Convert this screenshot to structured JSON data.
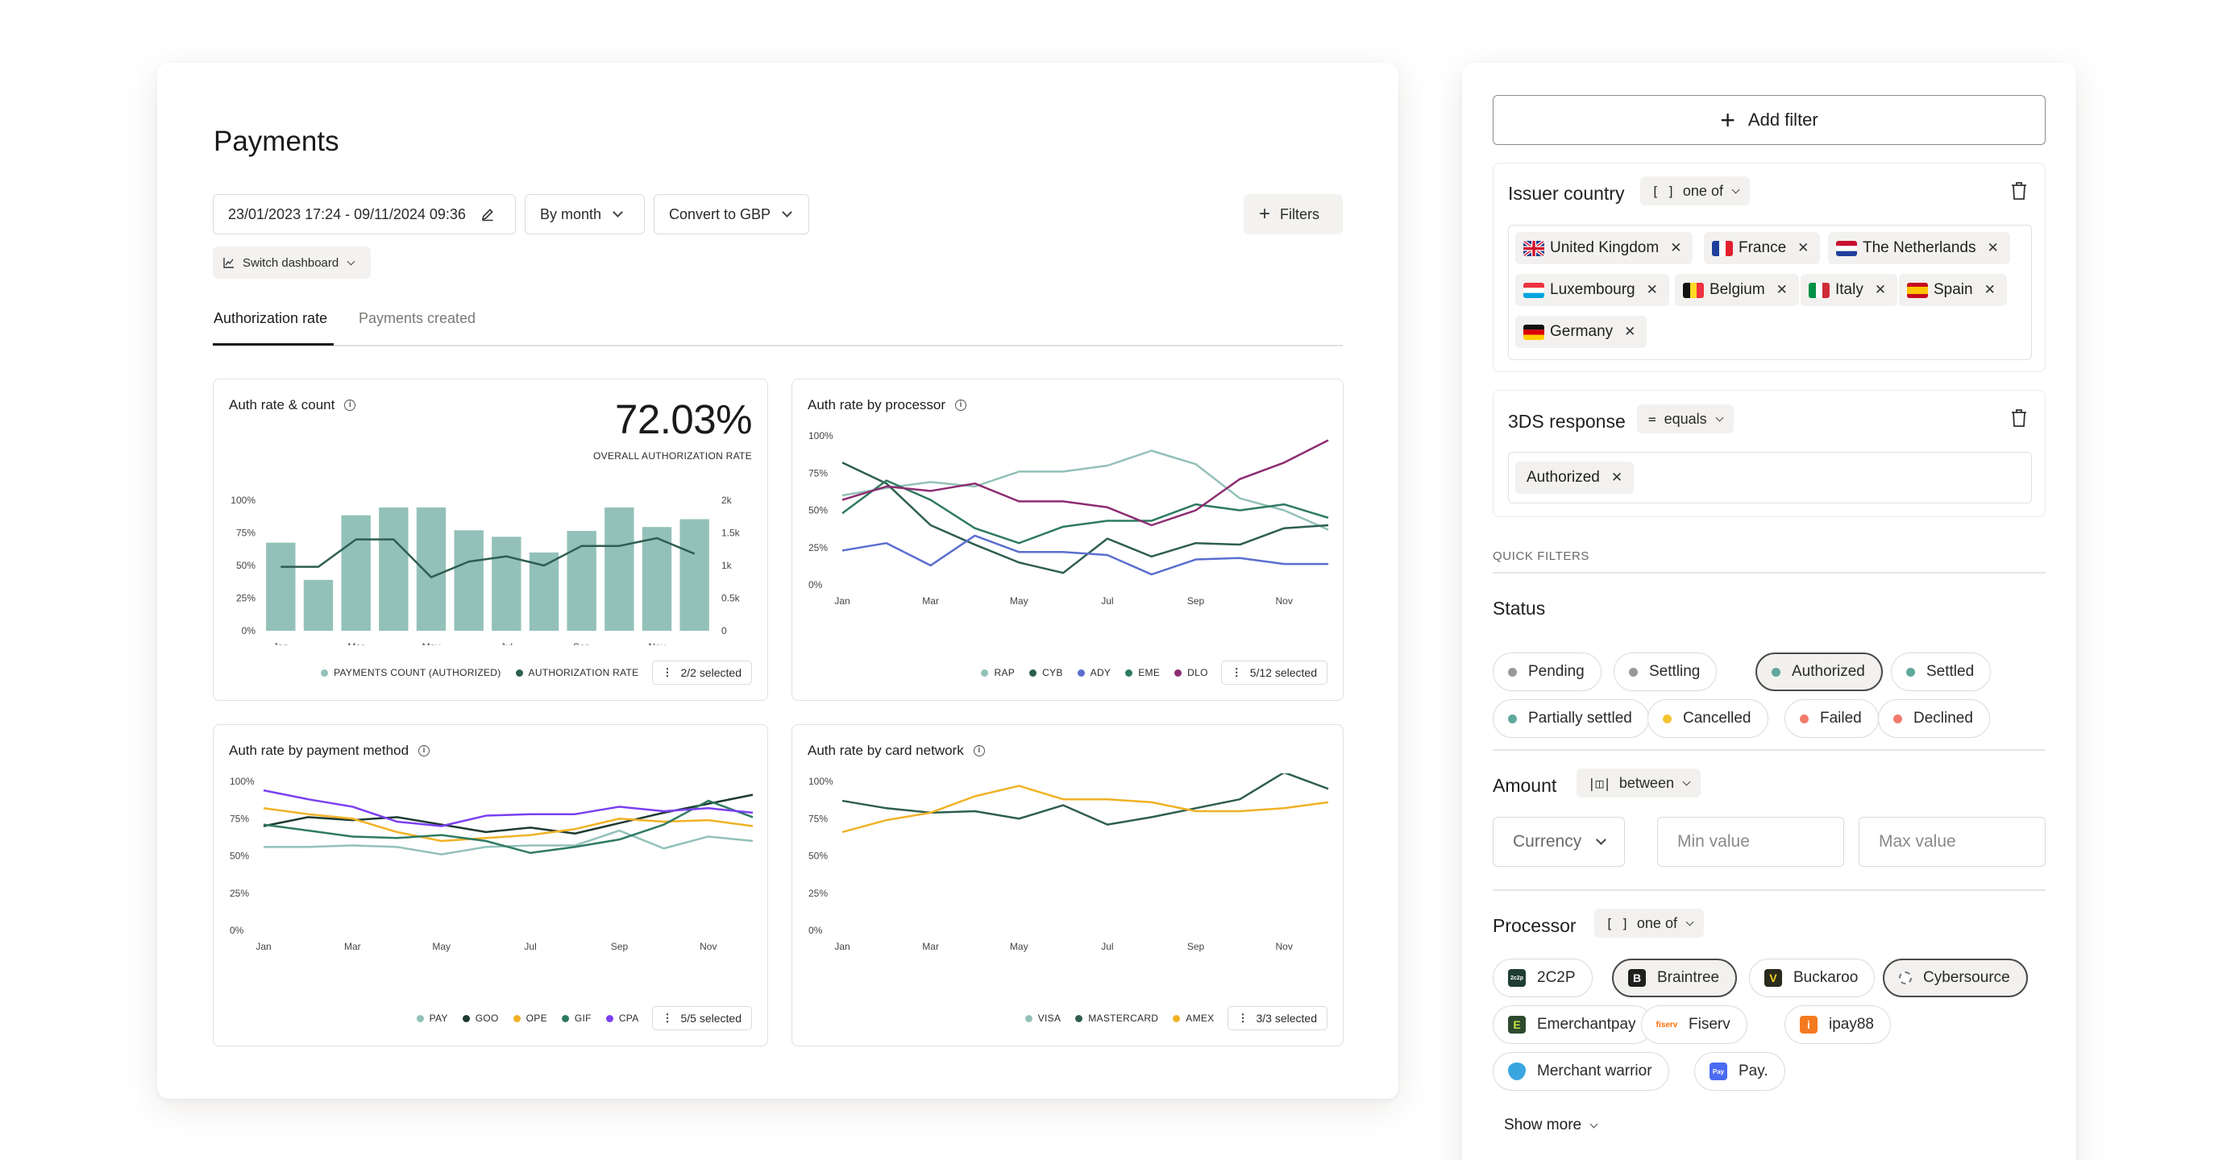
{
  "dashboard": {
    "title": "Payments",
    "date_range": "23/01/2023 17:24 - 09/11/2024 09:36",
    "group_by": "By month",
    "currency": "Convert to GBP",
    "filters_label": "Filters",
    "switch_label": "Switch dashboard",
    "tabs": [
      {
        "label": "Authorization rate",
        "active": true
      },
      {
        "label": "Payments created",
        "active": false
      }
    ]
  },
  "cards": {
    "auth_count": {
      "title": "Auth rate & count",
      "big_value": "72.03%",
      "big_caption": "OVERALL AUTHORIZATION RATE",
      "legend": [
        "PAYMENTS COUNT (AUTHORIZED)",
        "AUTHORIZATION RATE"
      ],
      "selected": "2/2 selected"
    },
    "processor": {
      "title": "Auth rate by processor",
      "legend": [
        "RAP",
        "CYB",
        "ADY",
        "EME",
        "DLO"
      ],
      "selected": "5/12 selected"
    },
    "method": {
      "title": "Auth rate by payment method",
      "legend": [
        "PAY",
        "GOO",
        "OPE",
        "GIF",
        "CPA"
      ],
      "selected": "5/5 selected"
    },
    "network": {
      "title": "Auth rate by card network",
      "legend": [
        "VISA",
        "MASTERCARD",
        "AMEX"
      ],
      "selected": "3/3 selected"
    }
  },
  "chart_data": [
    {
      "type": "bar",
      "title": "Auth rate & count",
      "x_ticks": [
        "Jan",
        "Mar",
        "May",
        "Jul",
        "Sep",
        "Nov"
      ],
      "y_ticks_left": [
        "100%",
        "75%",
        "50%",
        "25%",
        "0%"
      ],
      "y_ticks_right": [
        "2k",
        "1.5k",
        "1k",
        "0.5k",
        "0"
      ],
      "ylim_left": [
        0,
        100
      ],
      "ylim_right": [
        0,
        2000
      ],
      "series": [
        {
          "name": "PAYMENTS COUNT (AUTHORIZED)",
          "axis": "right",
          "color": "#93c1b9",
          "values": [
            1350,
            780,
            1770,
            1890,
            1890,
            1540,
            1440,
            1200,
            1530,
            1890,
            1590,
            1710
          ]
        },
        {
          "name": "AUTHORIZATION RATE",
          "axis": "left",
          "color": "#2e5e50",
          "values": [
            49,
            49,
            70,
            70,
            41,
            53,
            57,
            50,
            65,
            65,
            71,
            59
          ]
        }
      ]
    },
    {
      "type": "line",
      "title": "Auth rate by processor",
      "x_ticks": [
        "Jan",
        "Mar",
        "May",
        "Jul",
        "Sep",
        "Nov"
      ],
      "y_ticks": [
        "100%",
        "75%",
        "50%",
        "25%",
        "0%"
      ],
      "ylim": [
        0,
        100
      ],
      "series": [
        {
          "name": "RAP",
          "color": "#93c1b9",
          "values": [
            60,
            65,
            69,
            66,
            76,
            76,
            80,
            90,
            81,
            58,
            50,
            37
          ]
        },
        {
          "name": "CYB",
          "color": "#2e5e50",
          "values": [
            82,
            68,
            40,
            27,
            15,
            8,
            31,
            19,
            28,
            27,
            38,
            40
          ]
        },
        {
          "name": "ADY",
          "color": "#5a6fd0",
          "values": [
            23,
            28,
            13,
            33,
            22,
            22,
            20,
            7,
            17,
            18,
            14,
            14
          ]
        },
        {
          "name": "EME",
          "color": "#2f7a62",
          "values": [
            48,
            70,
            57,
            38,
            28,
            39,
            43,
            43,
            54,
            50,
            54,
            45
          ]
        },
        {
          "name": "DLO",
          "color": "#8d2c72",
          "values": [
            57,
            66,
            63,
            68,
            56,
            56,
            52,
            40,
            50,
            71,
            82,
            97
          ]
        }
      ]
    },
    {
      "type": "line",
      "title": "Auth rate by payment method",
      "x_ticks": [
        "Jan",
        "Mar",
        "May",
        "Jul",
        "Sep",
        "Nov"
      ],
      "y_ticks": [
        "100%",
        "75%",
        "50%",
        "25%",
        "0%"
      ],
      "ylim": [
        0,
        100
      ],
      "series": [
        {
          "name": "PAY",
          "color": "#93c1b9",
          "values": [
            56,
            56,
            57,
            56,
            51,
            56,
            57,
            57,
            67,
            55,
            63,
            60
          ]
        },
        {
          "name": "GOO",
          "color": "#1e3a32",
          "values": [
            70,
            76,
            74,
            76,
            71,
            66,
            69,
            65,
            72,
            79,
            85,
            91
          ]
        },
        {
          "name": "OPE",
          "color": "#f0b225",
          "values": [
            82,
            78,
            75,
            66,
            60,
            62,
            64,
            68,
            75,
            73,
            74,
            70
          ]
        },
        {
          "name": "GIF",
          "color": "#2f7a62",
          "values": [
            71,
            67,
            63,
            62,
            64,
            60,
            52,
            56,
            61,
            71,
            87,
            76
          ]
        },
        {
          "name": "CPA",
          "color": "#7b3ff2",
          "values": [
            94,
            88,
            83,
            73,
            70,
            77,
            78,
            78,
            83,
            80,
            82,
            79
          ]
        }
      ]
    },
    {
      "type": "line",
      "title": "Auth rate by card network",
      "x_ticks": [
        "Jan",
        "Mar",
        "May",
        "Jul",
        "Sep",
        "Nov"
      ],
      "y_ticks": [
        "100%",
        "75%",
        "50%",
        "25%",
        "0%"
      ],
      "ylim": [
        0,
        100
      ],
      "series": [
        {
          "name": "VISA",
          "color": "#93c1b9",
          "values": []
        },
        {
          "name": "MASTERCARD",
          "color": "#2e5e50",
          "values": [
            87,
            82,
            79,
            80,
            75,
            84,
            71,
            76,
            82,
            88,
            106,
            95
          ]
        },
        {
          "name": "AMEX",
          "color": "#f0b225",
          "values": [
            66,
            74,
            79,
            90,
            97,
            88,
            88,
            86,
            80,
            80,
            82,
            86
          ]
        }
      ]
    }
  ],
  "filters": {
    "add_filter": "Add filter",
    "issuer": {
      "label": "Issuer country",
      "operator_glyph": "[ ]",
      "operator": "one of",
      "tags": [
        "United Kingdom",
        "France",
        "The Netherlands",
        "Luxembourg",
        "Belgium",
        "Italy",
        "Spain",
        "Germany"
      ]
    },
    "threeds": {
      "label": "3DS response",
      "operator_glyph": "=",
      "operator": "equals",
      "tags": [
        "Authorized"
      ]
    },
    "quick_filters_label": "QUICK FILTERS",
    "status": {
      "label": "Status",
      "items": [
        {
          "label": "Pending",
          "color": "#9a9996"
        },
        {
          "label": "Settling",
          "color": "#9a9996"
        },
        {
          "label": "Authorized",
          "color": "#5fa89b",
          "active": true
        },
        {
          "label": "Settled",
          "color": "#5fa89b"
        },
        {
          "label": "Partially settled",
          "color": "#5fa89b"
        },
        {
          "label": "Cancelled",
          "color": "#f4c430"
        },
        {
          "label": "Failed",
          "color": "#f27a6a"
        },
        {
          "label": "Declined",
          "color": "#f27a6a"
        }
      ]
    },
    "amount": {
      "label": "Amount",
      "operator_glyph": "|◫|",
      "operator": "between",
      "currency": "Currency",
      "min": "Min value",
      "max": "Max value"
    },
    "processor": {
      "label": "Processor",
      "operator_glyph": "[ ]",
      "operator": "one of",
      "items": [
        {
          "label": "2C2P",
          "logo": "2c2p",
          "color": "#1f3d35"
        },
        {
          "label": "Braintree",
          "logo": "B",
          "color": "#1f1f1d",
          "active": true
        },
        {
          "label": "Buckaroo",
          "logo": "V",
          "color": "#2a2a1d"
        },
        {
          "label": "Cybersource",
          "logo": "C",
          "color": "#ffffff",
          "active": true
        },
        {
          "label": "Emerchantpay",
          "logo": "E",
          "color": "#2e4a2e"
        },
        {
          "label": "Fiserv",
          "logo": "fiserv",
          "color": "#ff6d00"
        },
        {
          "label": "ipay88",
          "logo": "i",
          "color": "#f47a20"
        },
        {
          "label": "Merchant warrior",
          "logo": "M",
          "color": "#3aa6e0"
        },
        {
          "label": "Pay.",
          "logo": "Pay",
          "color": "#4b6bf2"
        }
      ],
      "show_more": "Show more"
    }
  }
}
